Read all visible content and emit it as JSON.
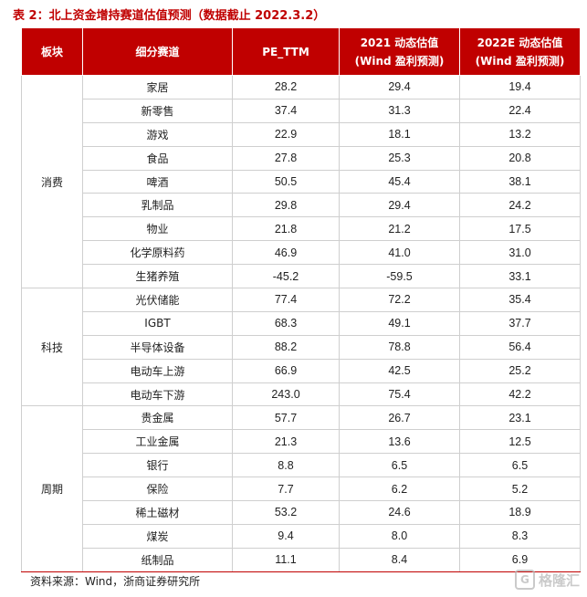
{
  "caption": "表 2：北上资金增持赛道估值预测（数据截止 2022.3.2）",
  "header": {
    "col1": "板块",
    "col2": "细分赛道",
    "col3": "PE_TTM",
    "col4_line1": "2021 动态估值",
    "col4_line2": "(Wind 盈利预测)",
    "col5_line1": "2022E 动态估值",
    "col5_line2": "(Wind 盈利预测)"
  },
  "groups": [
    {
      "name": "消费",
      "rows": [
        {
          "sector": "家居",
          "pe": "28.2",
          "v2021": "29.4",
          "v2022": "19.4"
        },
        {
          "sector": "新零售",
          "pe": "37.4",
          "v2021": "31.3",
          "v2022": "22.4"
        },
        {
          "sector": "游戏",
          "pe": "22.9",
          "v2021": "18.1",
          "v2022": "13.2"
        },
        {
          "sector": "食品",
          "pe": "27.8",
          "v2021": "25.3",
          "v2022": "20.8"
        },
        {
          "sector": "啤酒",
          "pe": "50.5",
          "v2021": "45.4",
          "v2022": "38.1"
        },
        {
          "sector": "乳制品",
          "pe": "29.8",
          "v2021": "29.4",
          "v2022": "24.2"
        },
        {
          "sector": "物业",
          "pe": "21.8",
          "v2021": "21.2",
          "v2022": "17.5"
        },
        {
          "sector": "化学原料药",
          "pe": "46.9",
          "v2021": "41.0",
          "v2022": "31.0"
        },
        {
          "sector": "生猪养殖",
          "pe": "-45.2",
          "v2021": "-59.5",
          "v2022": "33.1"
        }
      ]
    },
    {
      "name": "科技",
      "rows": [
        {
          "sector": "光伏储能",
          "pe": "77.4",
          "v2021": "72.2",
          "v2022": "35.4"
        },
        {
          "sector": "IGBT",
          "pe": "68.3",
          "v2021": "49.1",
          "v2022": "37.7"
        },
        {
          "sector": "半导体设备",
          "pe": "88.2",
          "v2021": "78.8",
          "v2022": "56.4"
        },
        {
          "sector": "电动车上游",
          "pe": "66.9",
          "v2021": "42.5",
          "v2022": "25.2"
        },
        {
          "sector": "电动车下游",
          "pe": "243.0",
          "v2021": "75.4",
          "v2022": "42.2"
        }
      ]
    },
    {
      "name": "周期",
      "rows": [
        {
          "sector": "贵金属",
          "pe": "57.7",
          "v2021": "26.7",
          "v2022": "23.1"
        },
        {
          "sector": "工业金属",
          "pe": "21.3",
          "v2021": "13.6",
          "v2022": "12.5"
        },
        {
          "sector": "银行",
          "pe": "8.8",
          "v2021": "6.5",
          "v2022": "6.5"
        },
        {
          "sector": "保险",
          "pe": "7.7",
          "v2021": "6.2",
          "v2022": "5.2"
        },
        {
          "sector": "稀土磁材",
          "pe": "53.2",
          "v2021": "24.6",
          "v2022": "18.9"
        },
        {
          "sector": "煤炭",
          "pe": "9.4",
          "v2021": "8.0",
          "v2022": "8.3"
        },
        {
          "sector": "纸制品",
          "pe": "11.1",
          "v2021": "8.4",
          "v2022": "6.9"
        }
      ]
    }
  ],
  "source": "资料来源：Wind，浙商证券研究所",
  "watermark": "格隆汇",
  "watermark_icon": "G",
  "colors": {
    "header_bg": "#c00000",
    "caption": "#c00000"
  }
}
